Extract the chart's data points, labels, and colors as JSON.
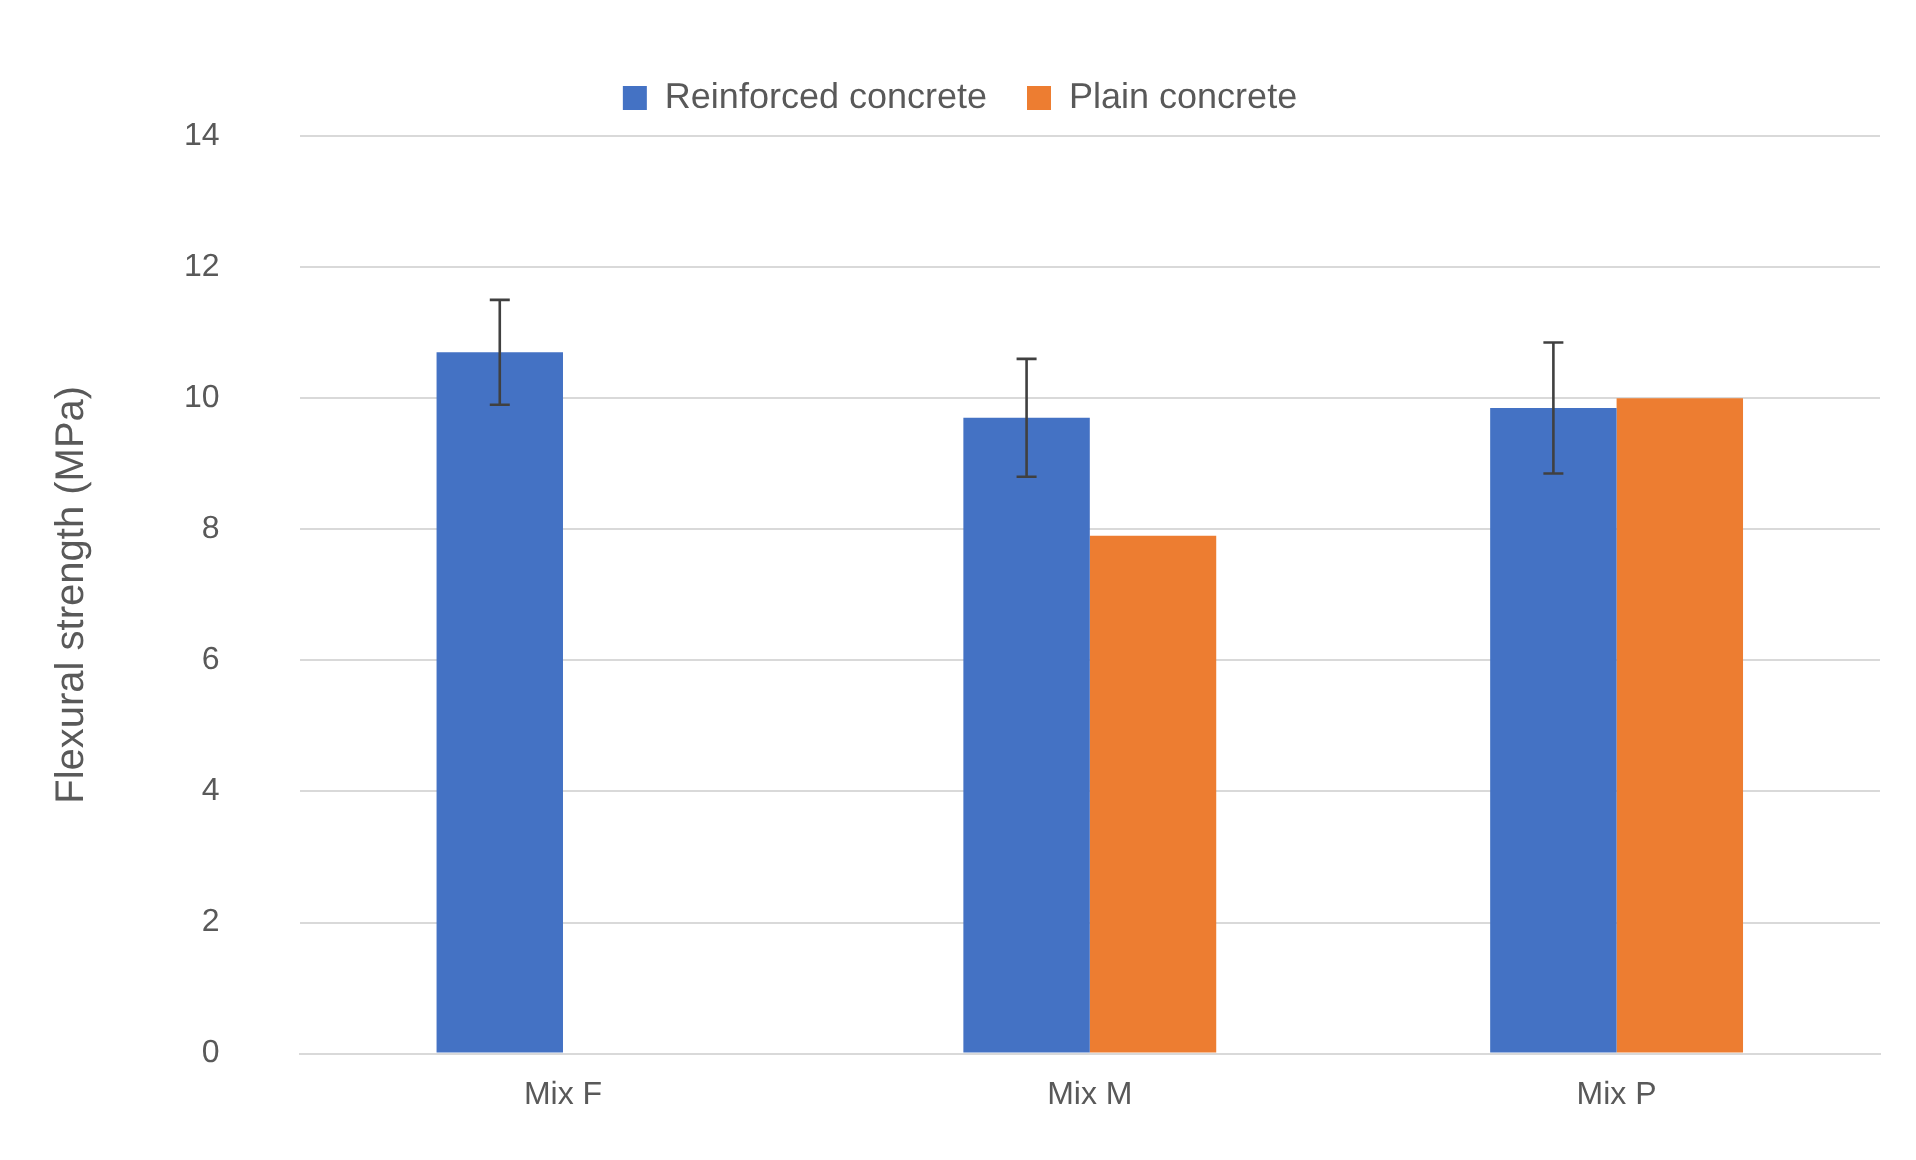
{
  "chart_data": {
    "type": "bar",
    "ylabel": "Flexural strength (MPa)",
    "categories": [
      "Mix F",
      "Mix M",
      "Mix P"
    ],
    "series": [
      {
        "name": "Reinforced concrete",
        "color": "#4472c4",
        "values": [
          10.7,
          9.7,
          9.85
        ],
        "errors": [
          0.8,
          0.9,
          1.0
        ]
      },
      {
        "name": "Plain concrete",
        "color": "#ed7d31",
        "values": [
          null,
          7.9,
          10.0
        ]
      }
    ],
    "ylim": [
      0,
      14
    ],
    "yticks": [
      0,
      2,
      4,
      6,
      8,
      10,
      12,
      14
    ],
    "grid": "y",
    "legend": "top"
  }
}
